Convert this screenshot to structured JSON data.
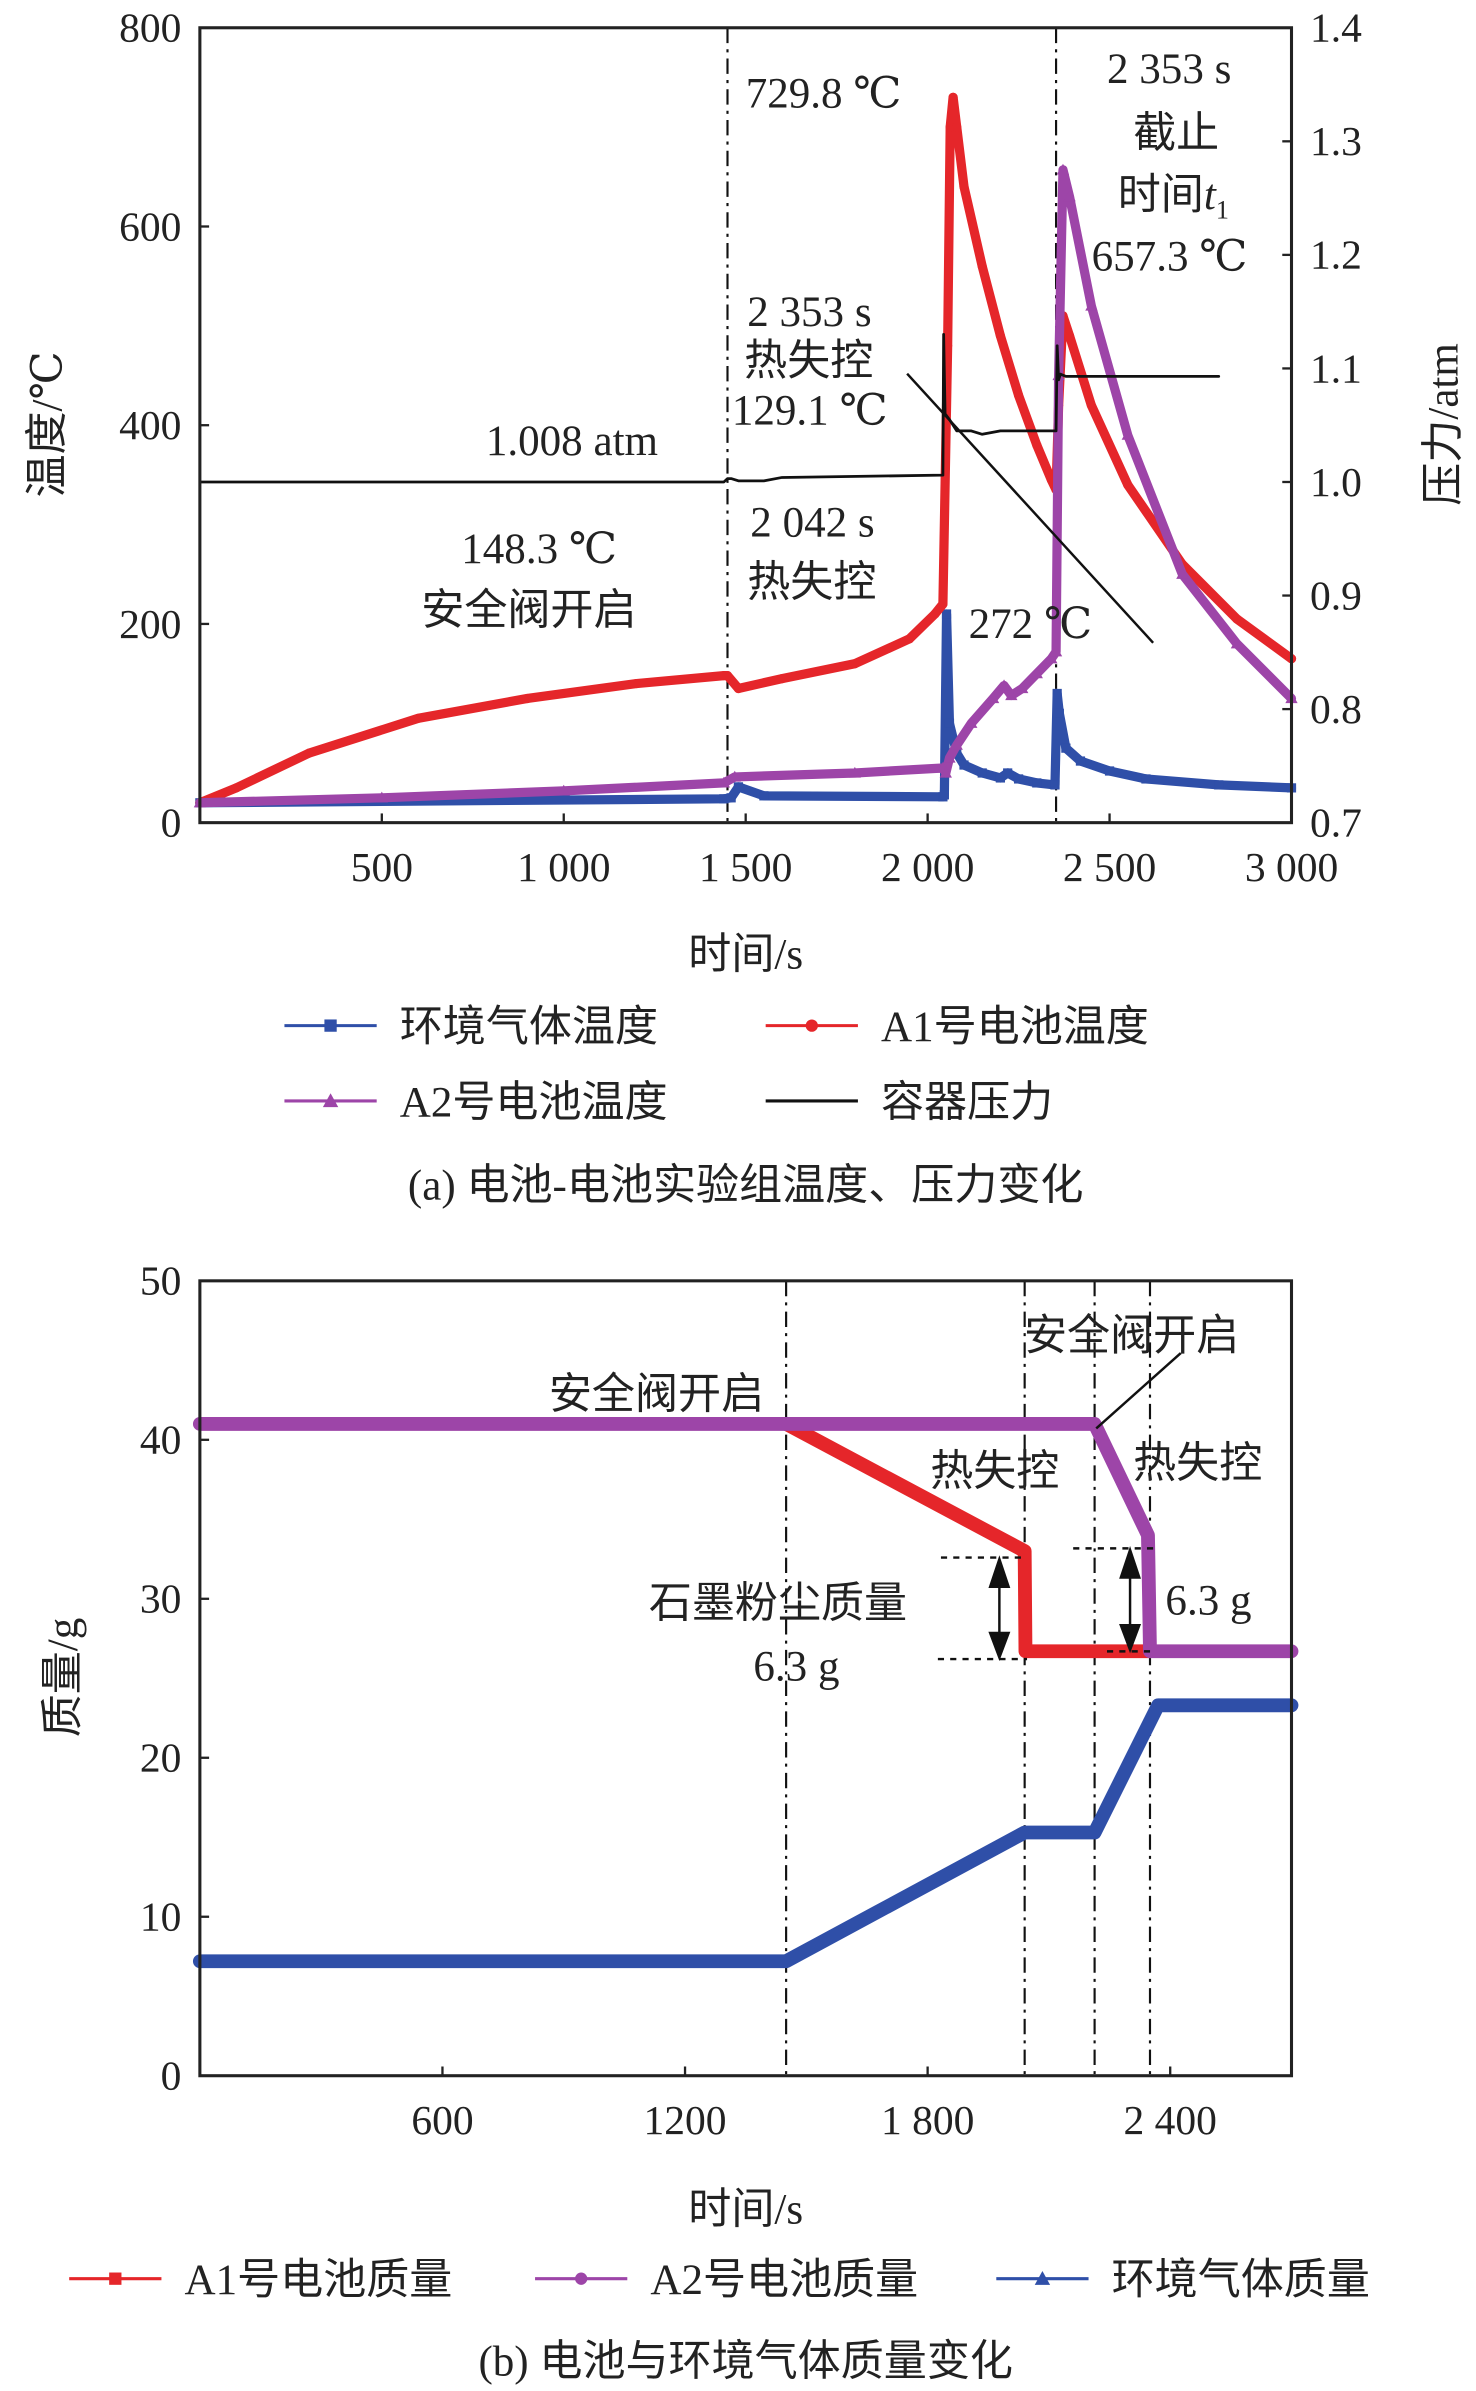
{
  "chart_data": [
    {
      "type": "line",
      "caption": "(a) 电池-电池实验组温度、压力变化",
      "xlabel": "时间/s",
      "ylabel": "温度/℃",
      "y2label": "压力/atm",
      "xlim": [
        0,
        3000
      ],
      "ylim": [
        0,
        800
      ],
      "y2lim": [
        0.7,
        1.4
      ],
      "xticks": [
        {
          "v": 500,
          "label": "500"
        },
        {
          "v": 1000,
          "label": "1 000"
        },
        {
          "v": 1500,
          "label": "1 500"
        },
        {
          "v": 2000,
          "label": "2 000"
        },
        {
          "v": 2500,
          "label": "2 500"
        },
        {
          "v": 3000,
          "label": "3 000"
        }
      ],
      "yticks": [
        {
          "v": 0,
          "label": "0"
        },
        {
          "v": 200,
          "label": "200"
        },
        {
          "v": 400,
          "label": "400"
        },
        {
          "v": 600,
          "label": "600"
        },
        {
          "v": 800,
          "label": "800"
        }
      ],
      "y2ticks": [
        {
          "v": 0.7,
          "label": "0.7"
        },
        {
          "v": 0.8,
          "label": "0.8"
        },
        {
          "v": 0.9,
          "label": "0.9"
        },
        {
          "v": 1.0,
          "label": "1.0"
        },
        {
          "v": 1.1,
          "label": "1.1"
        },
        {
          "v": 1.2,
          "label": "1.2"
        },
        {
          "v": 1.3,
          "label": "1.3"
        },
        {
          "v": 1.4,
          "label": "1.4"
        }
      ],
      "vlines": [
        1450,
        2353
      ],
      "legend_position": "bottom",
      "series": [
        {
          "name": "环境气体温度",
          "color": "#2f4fa8",
          "marker": "square",
          "axis": "left",
          "x": [
            0,
            1440,
            1460,
            1480,
            1550,
            2042,
            2046,
            2052,
            2060,
            2080,
            2100,
            2150,
            2200,
            2220,
            2250,
            2300,
            2350,
            2356,
            2362,
            2380,
            2420,
            2500,
            2600,
            2800,
            3000
          ],
          "y": [
            20,
            24,
            25,
            36,
            27,
            26,
            28,
            210,
            100,
            70,
            58,
            50,
            45,
            50,
            44,
            40,
            38,
            130,
            110,
            75,
            62,
            52,
            44,
            38,
            35
          ]
        },
        {
          "name": "A1号电池温度",
          "color": "#e5262a",
          "marker": "circle",
          "axis": "left",
          "x": [
            0,
            100,
            300,
            600,
            900,
            1200,
            1440,
            1450,
            1480,
            1600,
            1800,
            1950,
            2020,
            2042,
            2055,
            2062,
            2070,
            2080,
            2100,
            2150,
            2200,
            2250,
            2300,
            2340,
            2353,
            2360,
            2372,
            2390,
            2450,
            2550,
            2700,
            2850,
            3000
          ],
          "y": [
            20,
            35,
            70,
            105,
            125,
            140,
            148,
            148,
            135,
            145,
            160,
            185,
            210,
            220,
            480,
            700,
            730,
            700,
            640,
            560,
            490,
            430,
            380,
            345,
            335,
            420,
            510,
            490,
            420,
            340,
            260,
            205,
            165
          ]
        },
        {
          "name": "A2号电池温度",
          "color": "#9d45a8",
          "marker": "triangle",
          "axis": "left",
          "x": [
            0,
            500,
            1000,
            1440,
            1470,
            1800,
            2042,
            2050,
            2060,
            2080,
            2120,
            2180,
            2210,
            2230,
            2260,
            2300,
            2340,
            2353,
            2360,
            2372,
            2390,
            2450,
            2550,
            2700,
            2850,
            3000
          ],
          "y": [
            20,
            25,
            32,
            40,
            46,
            50,
            55,
            50,
            65,
            78,
            100,
            125,
            138,
            128,
            135,
            150,
            165,
            172,
            450,
            657,
            630,
            520,
            390,
            250,
            180,
            125
          ]
        },
        {
          "name": "容器压力",
          "color": "#111111",
          "marker": "none",
          "axis": "right",
          "x": [
            0,
            1440,
            1450,
            1460,
            1480,
            1550,
            1600,
            2040,
            2042,
            2044,
            2048,
            2060,
            2080,
            2120,
            2150,
            2200,
            2350,
            2353,
            2356,
            2360,
            2365,
            2380,
            2800
          ],
          "y": [
            1.0,
            1.0,
            1.003,
            1.003,
            1.001,
            1.001,
            1.004,
            1.006,
            1.006,
            1.13,
            1.06,
            1.055,
            1.045,
            1.045,
            1.042,
            1.045,
            1.045,
            1.045,
            1.12,
            1.09,
            1.095,
            1.093,
            1.093
          ]
        }
      ],
      "annotations": {
        "peak_a1": "729.8 ℃",
        "cutoff_time": "2 353 s",
        "cutoff_label": "截止",
        "cutoff_t_label": "时间",
        "cutoff_t_symbol": "t",
        "cutoff_t_sub": "1",
        "peak_a2": "657.3 ℃",
        "tr2_time": "2 353 s",
        "tr2_label": "热失控",
        "tr2_temp": "129.1 ℃",
        "pressure_value": "1.008 atm",
        "valve_temp": "148.3 ℃",
        "valve_label": "安全阀开启",
        "tr1_time": "2 042 s",
        "tr1_label": "热失控",
        "temp_272": "272 ℃"
      }
    },
    {
      "type": "line",
      "caption": "(b) 电池与环境气体质量变化",
      "xlabel": "时间/s",
      "ylabel": "质量/g",
      "xlim": [
        0,
        2700
      ],
      "ylim": [
        0,
        50
      ],
      "xticks": [
        {
          "v": 600,
          "label": "600"
        },
        {
          "v": 1200,
          "label": "1200"
        },
        {
          "v": 1800,
          "label": "1 800"
        },
        {
          "v": 2400,
          "label": "2 400"
        }
      ],
      "yticks": [
        {
          "v": 0,
          "label": "0"
        },
        {
          "v": 10,
          "label": "10"
        },
        {
          "v": 20,
          "label": "20"
        },
        {
          "v": 30,
          "label": "30"
        },
        {
          "v": 40,
          "label": "40"
        },
        {
          "v": 50,
          "label": "50"
        }
      ],
      "vlines": [
        1450,
        2040,
        2213,
        2350
      ],
      "legend_position": "bottom",
      "series": [
        {
          "name": "A1号电池质量",
          "color": "#e5262a",
          "marker": "square",
          "x": [
            1450,
            2040,
            2042,
            2350
          ],
          "y": [
            41,
            33,
            26.7,
            26.7
          ]
        },
        {
          "name": "A2号电池质量",
          "color": "#9d45a8",
          "marker": "circle",
          "x": [
            0,
            2213,
            2345,
            2350,
            2700
          ],
          "y": [
            41,
            41,
            34,
            26.7,
            26.7
          ]
        },
        {
          "name": "环境气体质量",
          "color": "#2f4fa8",
          "marker": "triangle",
          "x": [
            0,
            1450,
            2040,
            2213,
            2370,
            2700
          ],
          "y": [
            7.2,
            7.2,
            15.3,
            15.3,
            23.3,
            23.3
          ]
        }
      ],
      "annotations": {
        "valve1": "安全阀开启",
        "valve2": "安全阀开启",
        "tr1": "热失控",
        "tr2": "热失控",
        "dust_label": "石墨粉尘质量",
        "dust_value": "6.3 g",
        "dust_value2": "6.3 g"
      }
    }
  ]
}
